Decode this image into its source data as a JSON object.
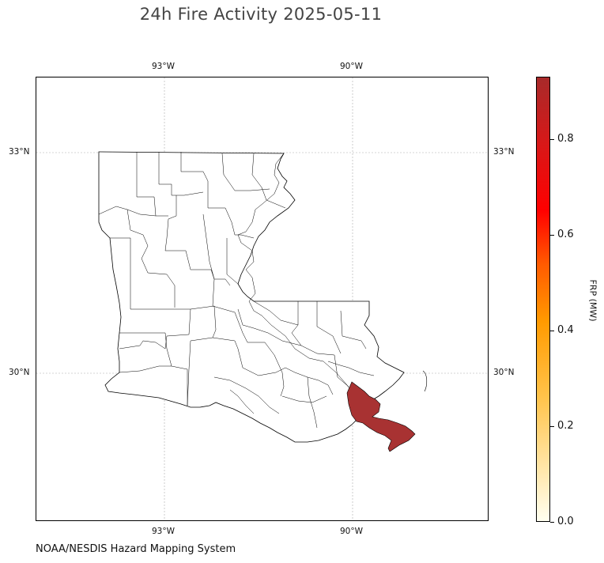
{
  "title": "24h Fire Activity 2025-05-11",
  "credit": "NOAA/NESDIS Hazard Mapping System",
  "map": {
    "region": "Louisiana",
    "gridlines": "dashed-gray",
    "lon_ticks": [
      "93°W",
      "90°W"
    ],
    "lat_ticks": [
      "33°N",
      "30°N"
    ],
    "fire_fill_color": "#a83232"
  },
  "colorbar": {
    "label": "FRP (MW)",
    "ticks": [
      "0.0",
      "0.2",
      "0.4",
      "0.6",
      "0.8"
    ],
    "range": [
      0.0,
      0.92
    ],
    "colors": [
      "#fffff0",
      "#ffc34a",
      "#ff9a00",
      "#ff0000",
      "#a82a2a"
    ]
  }
}
